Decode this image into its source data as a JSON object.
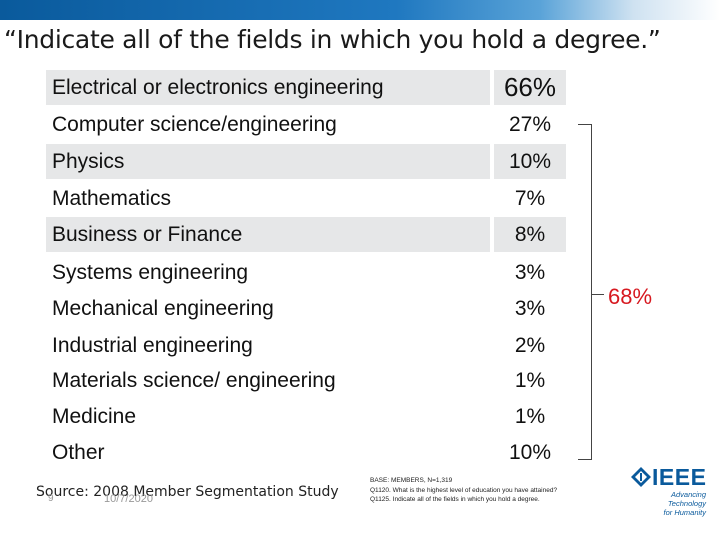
{
  "title": "“Indicate all of the fields in which you hold a degree.”",
  "rows": [
    {
      "label": "Electrical or electronics engineering",
      "value": "66%"
    },
    {
      "label": "Computer science/engineering",
      "value": "27%"
    },
    {
      "label": "Physics",
      "value": "10%"
    },
    {
      "label": "Mathematics",
      "value": "7%"
    },
    {
      "label": "Business or Finance",
      "value": "8%"
    },
    {
      "label": "Systems engineering",
      "value": "3%"
    },
    {
      "label": "Mechanical engineering",
      "value": "3%"
    },
    {
      "label": "Industrial engineering",
      "value": "2%"
    },
    {
      "label": "Materials science/ engineering",
      "value": "1%"
    },
    {
      "label": "Medicine",
      "value": "1%"
    },
    {
      "label": "Other",
      "value": "10%"
    }
  ],
  "bracket_total": "68%",
  "footer": {
    "source": "Source: 2008 Member Segmentation Study",
    "page_number": "9",
    "date": "10/7/2020",
    "notes": [
      "BASE:  MEMBERS, N=1,319",
      "Q1120. What is the highest level of education you have attained?",
      "Q1125. Indicate all of the fields in which you hold a degree."
    ]
  },
  "logo": {
    "word": "IEEE",
    "tagline_1": "Advancing Technology",
    "tagline_2": "for Humanity"
  },
  "colors": {
    "accent_blue": "#0a5a9c",
    "total_red": "#d71920",
    "row_shade": "#e6e7e8"
  }
}
